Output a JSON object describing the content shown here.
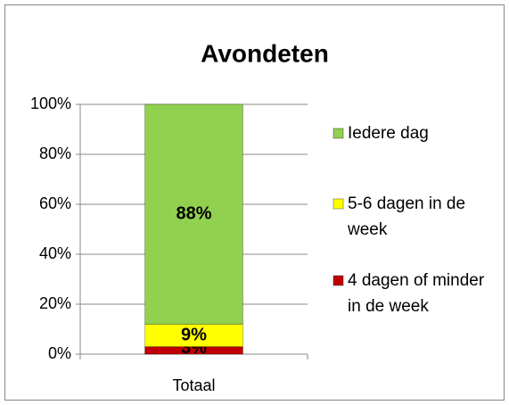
{
  "chart_data": {
    "type": "stacked_bar",
    "title": "Avondeten",
    "categories": [
      "Totaal"
    ],
    "series": [
      {
        "name": "4 dagen of minder in de week",
        "color": "#c00000",
        "values": [
          3
        ],
        "value_labels": [
          "3%"
        ]
      },
      {
        "name": "5-6 dagen in de week",
        "color": "#ffff00",
        "values": [
          9
        ],
        "value_labels": [
          "9%"
        ]
      },
      {
        "name": "Iedere dag",
        "color": "#92d050",
        "values": [
          88
        ],
        "value_labels": [
          "88%"
        ]
      }
    ],
    "ylim": [
      0,
      100
    ],
    "yticks": [
      {
        "value": 0,
        "label": "0%"
      },
      {
        "value": 20,
        "label": "20%"
      },
      {
        "value": 40,
        "label": "40%"
      },
      {
        "value": 60,
        "label": "60%"
      },
      {
        "value": 80,
        "label": "80%"
      },
      {
        "value": 100,
        "label": "100%"
      }
    ],
    "grid": true,
    "legend": "right"
  }
}
